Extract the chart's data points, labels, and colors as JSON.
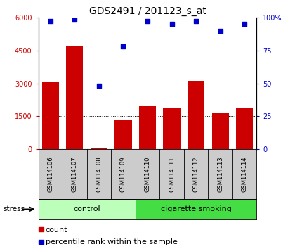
{
  "title": "GDS2491 / 201123_s_at",
  "samples": [
    "GSM114106",
    "GSM114107",
    "GSM114108",
    "GSM114109",
    "GSM114110",
    "GSM114111",
    "GSM114112",
    "GSM114113",
    "GSM114114"
  ],
  "counts": [
    3050,
    4700,
    60,
    1350,
    2000,
    1900,
    3100,
    1650,
    1900
  ],
  "percentiles": [
    97,
    99,
    48,
    78,
    97,
    95,
    97,
    90,
    95
  ],
  "groups": [
    {
      "label": "control",
      "start": 0,
      "end": 4,
      "color": "#bbffbb"
    },
    {
      "label": "cigarette smoking",
      "start": 4,
      "end": 9,
      "color": "#44dd44"
    }
  ],
  "bar_color": "#cc0000",
  "dot_color": "#0000cc",
  "ylim_left": [
    0,
    6000
  ],
  "ylim_right": [
    0,
    100
  ],
  "yticks_left": [
    0,
    1500,
    3000,
    4500,
    6000
  ],
  "yticks_right": [
    0,
    25,
    50,
    75,
    100
  ],
  "bg_color": "#ffffff",
  "grey_band": "#cccccc",
  "axis_color_left": "#cc0000",
  "axis_color_right": "#0000cc",
  "legend_count": "count",
  "legend_percentile": "percentile rank within the sample",
  "title_fontsize": 10,
  "tick_fontsize": 7,
  "sample_fontsize": 6,
  "group_fontsize": 8,
  "legend_fontsize": 8
}
